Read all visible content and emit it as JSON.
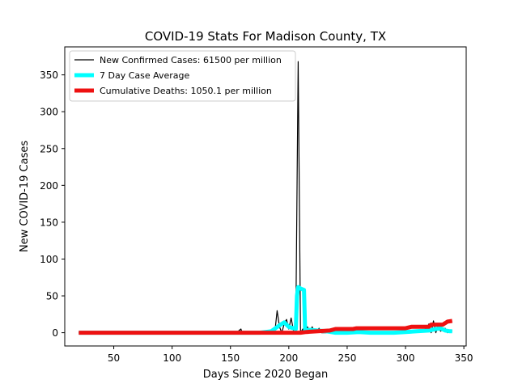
{
  "chart_data": {
    "type": "line",
    "title": "COVID-19 Stats For Madison County, TX",
    "xlabel": "Days Since 2020 Began",
    "ylabel": "New COVID-19 Cases",
    "xlim": [
      8,
      352
    ],
    "ylim": [
      -18,
      388
    ],
    "xticks": [
      50,
      100,
      150,
      200,
      250,
      300,
      350
    ],
    "yticks": [
      0,
      50,
      100,
      150,
      200,
      250,
      300,
      350
    ],
    "grid": false,
    "legend_position": "top-left",
    "series": [
      {
        "name": "New Confirmed Cases: 61500 per million",
        "color": "#000000",
        "style": "thin",
        "points": [
          [
            20,
            0
          ],
          [
            150,
            0
          ],
          [
            155,
            0
          ],
          [
            159,
            5
          ],
          [
            160,
            0
          ],
          [
            175,
            0
          ],
          [
            186,
            2
          ],
          [
            188,
            0
          ],
          [
            190,
            30
          ],
          [
            192,
            8
          ],
          [
            194,
            0
          ],
          [
            196,
            12
          ],
          [
            198,
            18
          ],
          [
            200,
            5
          ],
          [
            202,
            20
          ],
          [
            204,
            3
          ],
          [
            206,
            12
          ],
          [
            208,
            368
          ],
          [
            210,
            0
          ],
          [
            212,
            5
          ],
          [
            214,
            0
          ],
          [
            216,
            8
          ],
          [
            218,
            0
          ],
          [
            220,
            8
          ],
          [
            222,
            0
          ],
          [
            226,
            6
          ],
          [
            228,
            0
          ],
          [
            232,
            0
          ],
          [
            240,
            2
          ],
          [
            250,
            0
          ],
          [
            260,
            1
          ],
          [
            270,
            0
          ],
          [
            280,
            1
          ],
          [
            290,
            0
          ],
          [
            300,
            0
          ],
          [
            310,
            2
          ],
          [
            318,
            5
          ],
          [
            320,
            12
          ],
          [
            322,
            0
          ],
          [
            324,
            16
          ],
          [
            326,
            0
          ],
          [
            328,
            10
          ],
          [
            330,
            2
          ],
          [
            334,
            6
          ],
          [
            336,
            0
          ],
          [
            340,
            3
          ]
        ]
      },
      {
        "name": "7 Day Case Average",
        "color": "#00ffff",
        "style": "thick",
        "points": [
          [
            20,
            0
          ],
          [
            150,
            0
          ],
          [
            175,
            0
          ],
          [
            185,
            2
          ],
          [
            192,
            10
          ],
          [
            196,
            14
          ],
          [
            200,
            8
          ],
          [
            204,
            6
          ],
          [
            206,
            5
          ],
          [
            207,
            50
          ],
          [
            208,
            62
          ],
          [
            210,
            60
          ],
          [
            213,
            58
          ],
          [
            214,
            3
          ],
          [
            218,
            4
          ],
          [
            224,
            3
          ],
          [
            232,
            2
          ],
          [
            240,
            0
          ],
          [
            250,
            0
          ],
          [
            260,
            1
          ],
          [
            270,
            0
          ],
          [
            280,
            0
          ],
          [
            290,
            0
          ],
          [
            300,
            1
          ],
          [
            310,
            2
          ],
          [
            320,
            3
          ],
          [
            326,
            5
          ],
          [
            330,
            6
          ],
          [
            334,
            3
          ],
          [
            338,
            2
          ],
          [
            340,
            2
          ]
        ]
      },
      {
        "name": "Cumulative Deaths: 1050.1 per million",
        "color": "#ee1111",
        "style": "thick",
        "points": [
          [
            20,
            0
          ],
          [
            205,
            0
          ],
          [
            210,
            0
          ],
          [
            215,
            1
          ],
          [
            225,
            2
          ],
          [
            235,
            3
          ],
          [
            240,
            5
          ],
          [
            255,
            5
          ],
          [
            258,
            6
          ],
          [
            300,
            6
          ],
          [
            305,
            8
          ],
          [
            320,
            8
          ],
          [
            322,
            11
          ],
          [
            332,
            11
          ],
          [
            334,
            13
          ],
          [
            336,
            15
          ],
          [
            340,
            16
          ]
        ]
      }
    ]
  }
}
